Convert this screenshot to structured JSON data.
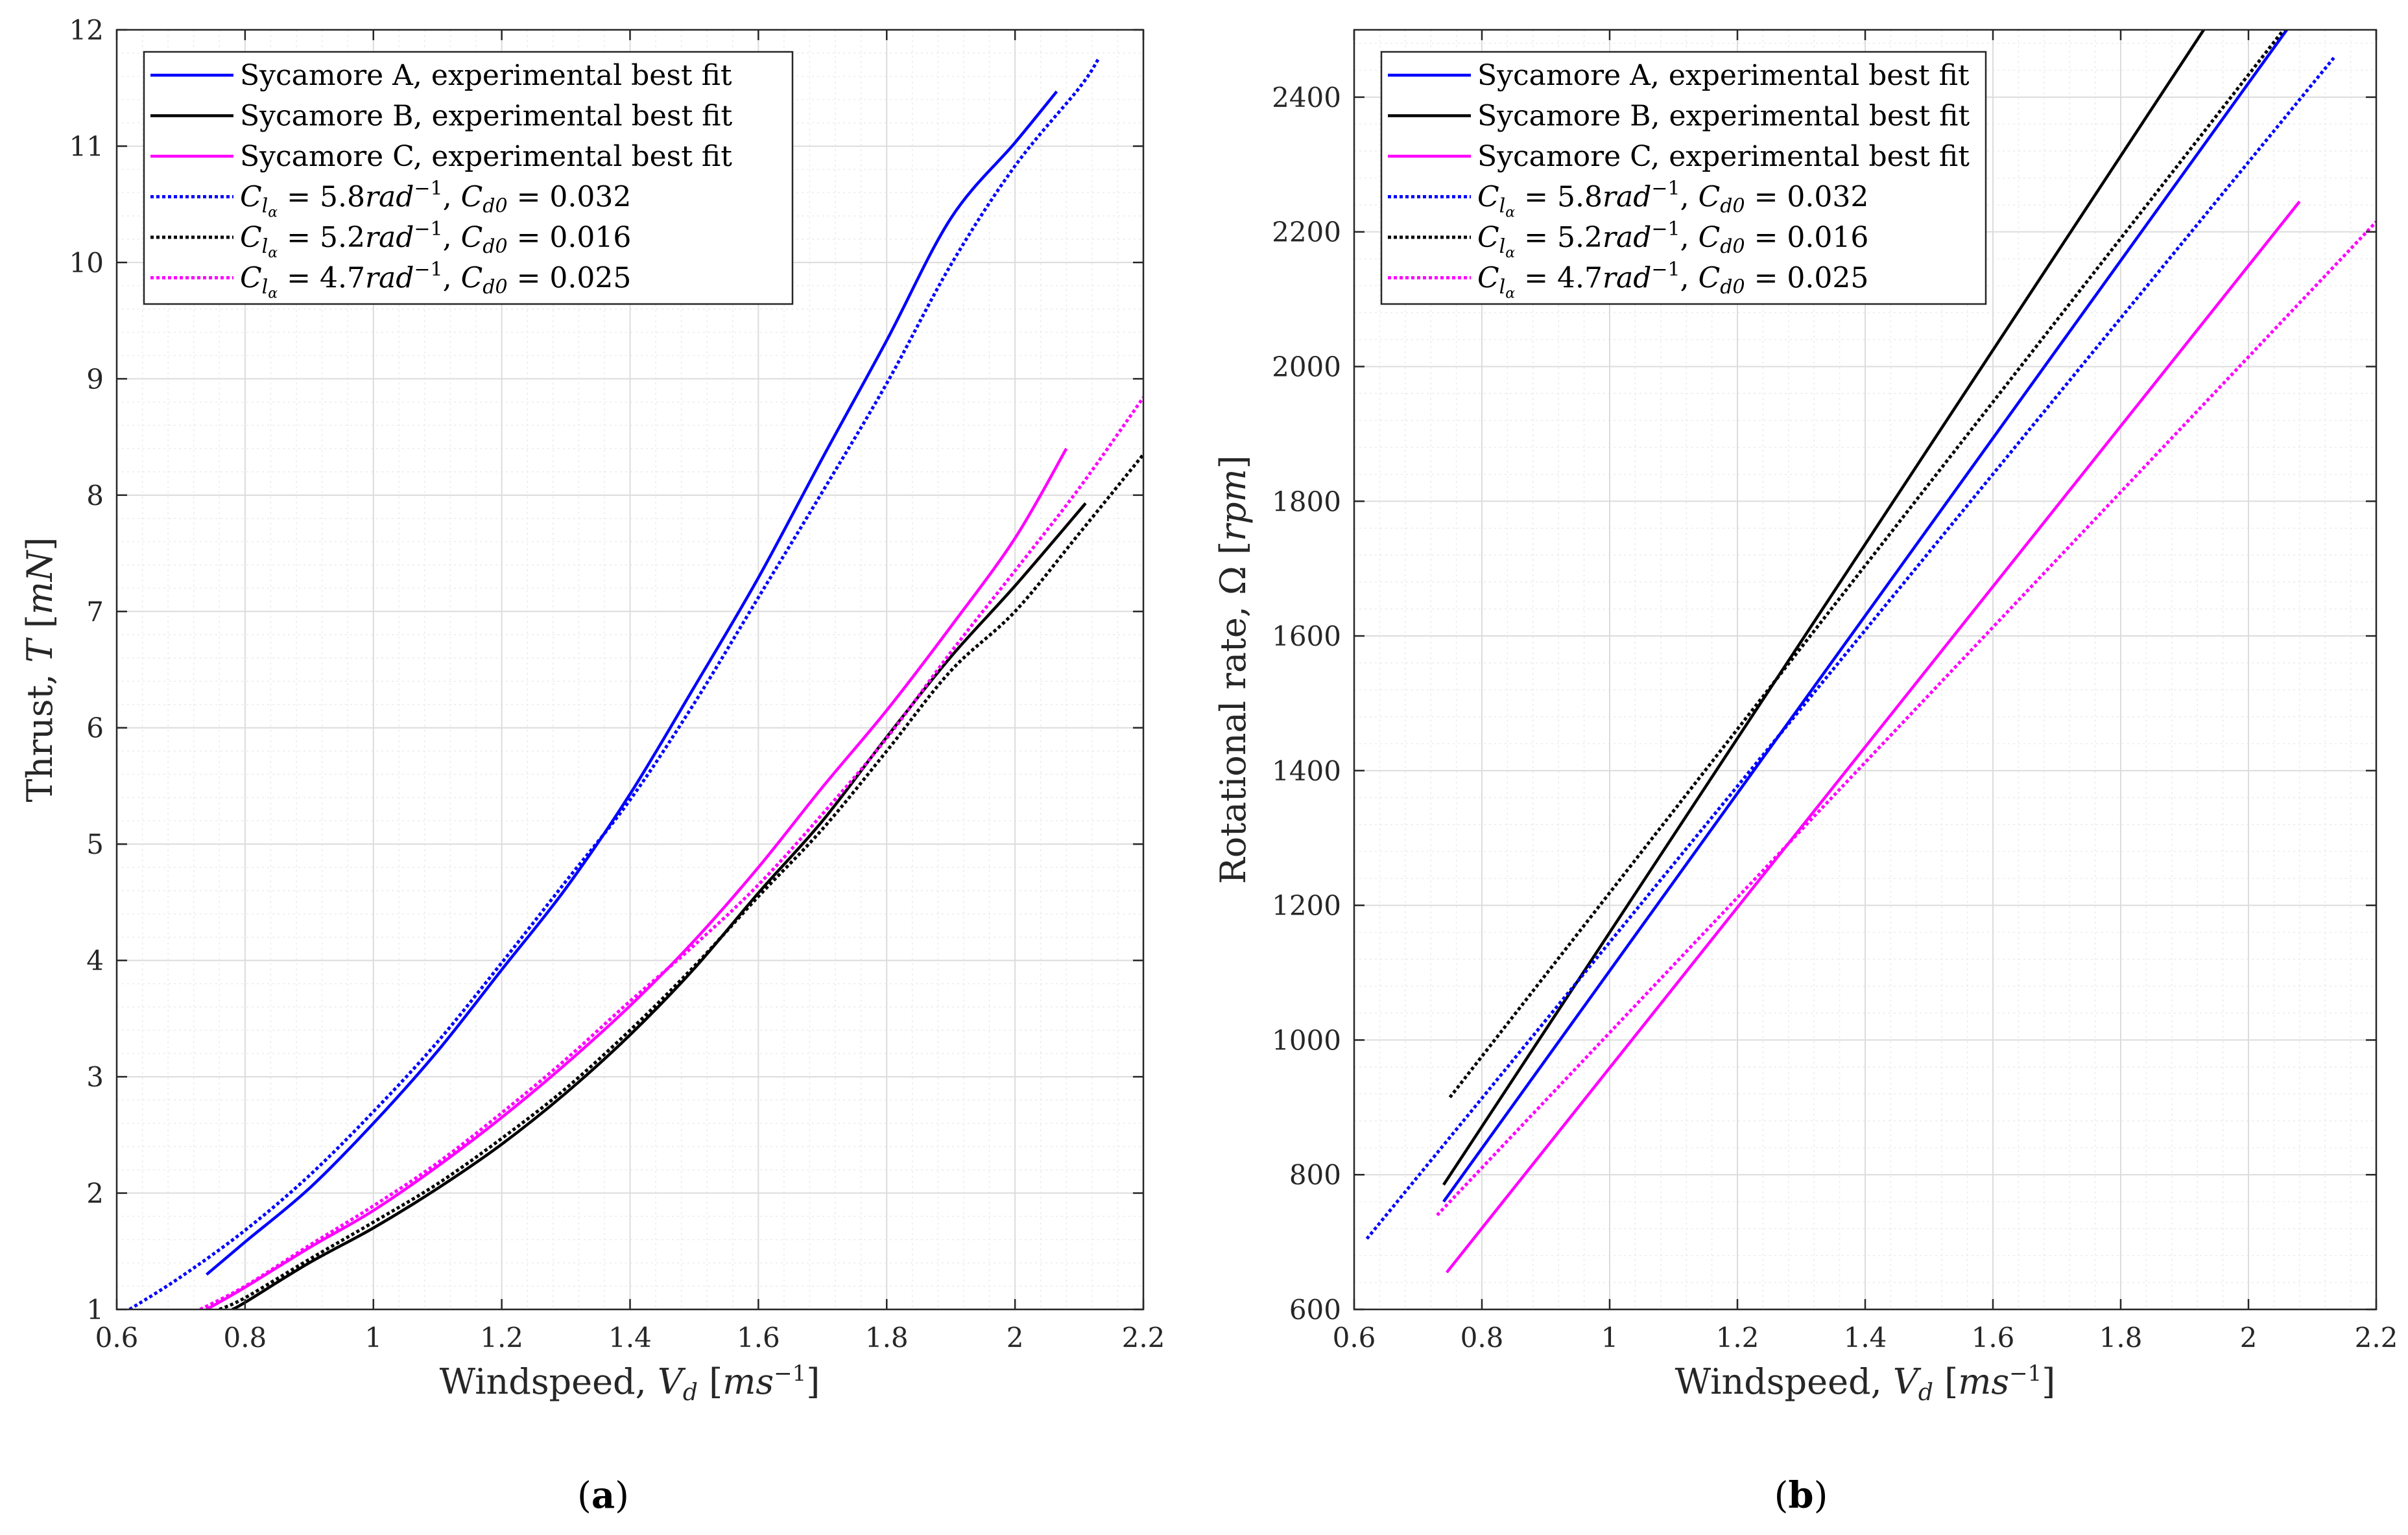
{
  "chart_data": [
    {
      "type": "line",
      "caption_letter": "a",
      "xlabel": "Windspeed, V_d [ms^-1]",
      "ylabel": "Thrust, T [mN]",
      "xlim": [
        0.6,
        2.2
      ],
      "ylim": [
        1,
        12
      ],
      "xticks": [
        "0.6",
        "0.8",
        "1",
        "1.2",
        "1.4",
        "1.6",
        "1.8",
        "2",
        "2.2"
      ],
      "yticks": [
        "1",
        "2",
        "3",
        "4",
        "5",
        "6",
        "7",
        "8",
        "9",
        "10",
        "11",
        "12"
      ],
      "grid": true,
      "legend_position": "top-left",
      "series": [
        {
          "name": "Sycamore A, experimental best fit",
          "color": "#0000ff",
          "style": "solid",
          "x": [
            0.74,
            0.8,
            0.9,
            1.0,
            1.1,
            1.2,
            1.3,
            1.4,
            1.5,
            1.6,
            1.7,
            1.8,
            1.9,
            2.0,
            2.065
          ],
          "y": [
            1.3,
            1.58,
            2.04,
            2.6,
            3.22,
            3.92,
            4.62,
            5.43,
            6.35,
            7.29,
            8.32,
            9.33,
            10.38,
            11.03,
            11.47
          ]
        },
        {
          "name": "Sycamore B, experimental best fit",
          "color": "#000000",
          "style": "solid",
          "x": [
            0.78,
            0.8,
            0.9,
            1.0,
            1.1,
            1.2,
            1.3,
            1.4,
            1.5,
            1.6,
            1.7,
            1.8,
            1.9,
            2.0,
            2.11
          ],
          "y": [
            1.0,
            1.06,
            1.4,
            1.7,
            2.04,
            2.42,
            2.86,
            3.36,
            3.93,
            4.58,
            5.2,
            5.92,
            6.61,
            7.22,
            7.93
          ]
        },
        {
          "name": "Sycamore C, experimental best fit",
          "color": "#ff00ff",
          "style": "solid",
          "x": [
            0.74,
            0.8,
            0.9,
            1.0,
            1.1,
            1.2,
            1.3,
            1.4,
            1.5,
            1.6,
            1.7,
            1.8,
            1.9,
            2.0,
            2.08
          ],
          "y": [
            1.0,
            1.19,
            1.53,
            1.85,
            2.23,
            2.65,
            3.11,
            3.61,
            4.17,
            4.8,
            5.49,
            6.15,
            6.87,
            7.63,
            8.4
          ]
        },
        {
          "name": "C_lα = 5.8rad^-1, C_d0 = 0.032",
          "color": "#0000ff",
          "style": "dotted",
          "x": [
            0.62,
            0.7,
            0.8,
            0.9,
            1.0,
            1.1,
            1.2,
            1.3,
            1.4,
            1.5,
            1.6,
            1.7,
            1.8,
            1.9,
            2.0,
            2.1,
            2.13
          ],
          "y": [
            1.0,
            1.28,
            1.68,
            2.15,
            2.7,
            3.3,
            3.98,
            4.68,
            5.38,
            6.21,
            7.12,
            8.03,
            8.96,
            9.98,
            10.83,
            11.5,
            11.75
          ]
        },
        {
          "name": "C_lα = 5.2rad^-1, C_d0 = 0.016",
          "color": "#000000",
          "style": "dotted",
          "x": [
            0.76,
            0.8,
            0.9,
            1.0,
            1.1,
            1.2,
            1.3,
            1.4,
            1.5,
            1.6,
            1.7,
            1.8,
            1.9,
            2.0,
            2.1,
            2.2
          ],
          "y": [
            1.0,
            1.1,
            1.43,
            1.75,
            2.08,
            2.47,
            2.9,
            3.4,
            3.95,
            4.55,
            5.13,
            5.8,
            6.49,
            7.0,
            7.67,
            8.35
          ]
        },
        {
          "name": "C_lα = 4.7rad^-1, C_d0 = 0.025",
          "color": "#ff00ff",
          "style": "dotted",
          "x": [
            0.73,
            0.8,
            0.9,
            1.0,
            1.1,
            1.2,
            1.3,
            1.4,
            1.5,
            1.6,
            1.7,
            1.8,
            1.9,
            2.0,
            2.1,
            2.2
          ],
          "y": [
            1.0,
            1.2,
            1.55,
            1.89,
            2.26,
            2.69,
            3.15,
            3.65,
            4.13,
            4.65,
            5.26,
            5.91,
            6.65,
            7.35,
            8.06,
            8.84
          ]
        }
      ]
    },
    {
      "type": "line",
      "caption_letter": "b",
      "xlabel": "Windspeed, V_d [ms^-1]",
      "ylabel": "Rotational rate, Ω [rpm]",
      "xlim": [
        0.6,
        2.2
      ],
      "ylim": [
        600,
        2500
      ],
      "xticks": [
        "0.6",
        "0.8",
        "1",
        "1.2",
        "1.4",
        "1.6",
        "1.8",
        "2",
        "2.2"
      ],
      "yticks": [
        "600",
        "800",
        "1000",
        "1200",
        "1400",
        "1600",
        "1800",
        "2000",
        "2200",
        "2400"
      ],
      "grid": true,
      "legend_position": "top-left",
      "series": [
        {
          "name": "Sycamore A, experimental best fit",
          "color": "#0000ff",
          "style": "solid",
          "x": [
            0.74,
            2.06
          ],
          "y": [
            760,
            2500
          ]
        },
        {
          "name": "Sycamore B, experimental best fit",
          "color": "#000000",
          "style": "solid",
          "x": [
            0.74,
            1.93
          ],
          "y": [
            785,
            2500
          ]
        },
        {
          "name": "Sycamore C, experimental best fit",
          "color": "#ff00ff",
          "style": "solid",
          "x": [
            0.745,
            2.08
          ],
          "y": [
            655,
            2245
          ]
        },
        {
          "name": "C_lα = 5.8rad^-1, C_d0 = 0.032",
          "color": "#0000ff",
          "style": "dotted",
          "x": [
            0.62,
            2.135
          ],
          "y": [
            705,
            2460
          ]
        },
        {
          "name": "C_lα = 5.2rad^-1, C_d0 = 0.016",
          "color": "#000000",
          "style": "dotted",
          "x": [
            0.75,
            2.055
          ],
          "y": [
            915,
            2500
          ]
        },
        {
          "name": "C_lα = 4.7rad^-1, C_d0 = 0.025",
          "color": "#ff00ff",
          "style": "dotted",
          "x": [
            0.73,
            2.2
          ],
          "y": [
            740,
            2215
          ]
        }
      ]
    }
  ]
}
